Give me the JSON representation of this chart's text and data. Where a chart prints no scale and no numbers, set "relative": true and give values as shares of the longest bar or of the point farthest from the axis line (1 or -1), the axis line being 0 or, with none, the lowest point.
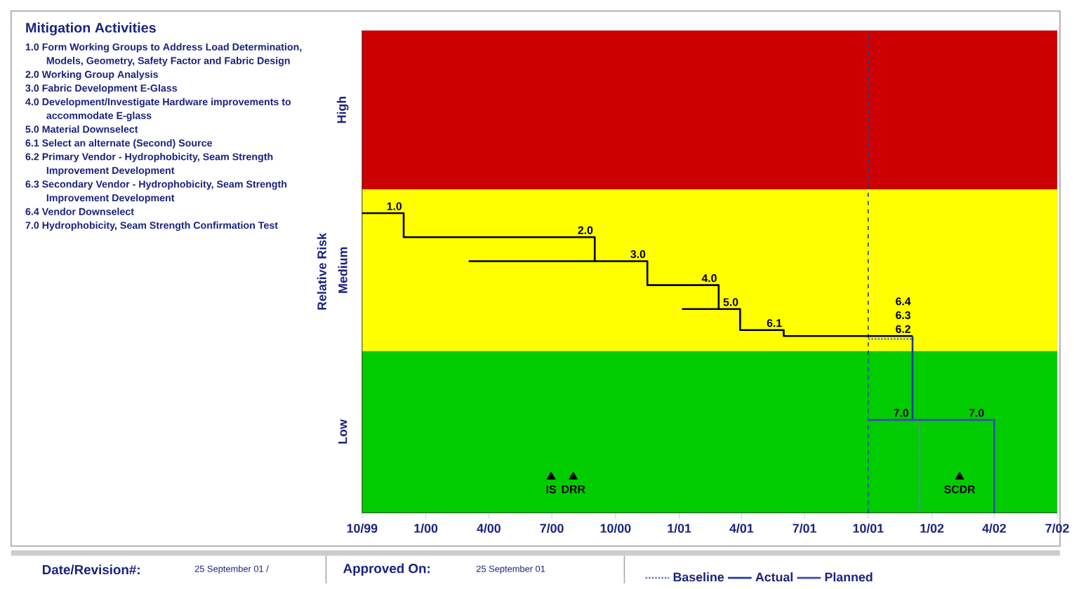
{
  "chart_data": {
    "type": "line",
    "ylabel": "Relative Risk",
    "relative": true,
    "xlim": [
      "1999-10-01",
      "2002-07-01"
    ],
    "xticks": [
      {
        "value": "1999-10-01",
        "label": "10/99"
      },
      {
        "value": "2000-01-01",
        "label": "1/00"
      },
      {
        "value": "2000-04-01",
        "label": "4/00"
      },
      {
        "value": "2000-07-01",
        "label": "7/00"
      },
      {
        "value": "2000-10-01",
        "label": "10/00"
      },
      {
        "value": "2001-01-01",
        "label": "1/01"
      },
      {
        "value": "2001-04-01",
        "label": "4/01"
      },
      {
        "value": "2001-07-01",
        "label": "7/01"
      },
      {
        "value": "2001-10-01",
        "label": "10/01"
      },
      {
        "value": "2002-01-01",
        "label": "1/02"
      },
      {
        "value": "2002-04-01",
        "label": "4/02"
      },
      {
        "value": "2002-07-01",
        "label": "7/02"
      }
    ],
    "bands": [
      {
        "axis": "y",
        "from": 0,
        "to": 0.54,
        "color": "#00cc00",
        "label": "Low"
      },
      {
        "axis": "y",
        "from": 0.54,
        "to": 1.08,
        "color": "#ffff00",
        "label": "Medium"
      },
      {
        "axis": "y",
        "from": 1.08,
        "to": 1.61,
        "color": "#cc0000",
        "label": "High"
      }
    ],
    "ref_lines": [
      {
        "axis": "x",
        "value": "2001-10-01",
        "color": "#2040a0",
        "line_style": "dashed"
      }
    ],
    "legend": "bottom",
    "series": [
      {
        "color": "#000000",
        "line_style": "solid",
        "x": [
          "1999-10-01",
          "1999-11-30",
          "1999-11-30",
          "2000-09-01",
          "2000-09-01",
          "2000-11-16",
          "2000-11-16",
          "2001-02-27",
          "2001-02-27",
          "2001-03-30",
          "2001-03-30",
          "2001-06-01",
          "2001-06-01",
          "2001-12-04",
          null,
          "2000-03-03",
          "2000-09-01",
          null,
          "2001-01-05",
          "2001-02-27"
        ],
        "values": [
          1,
          1,
          0.92,
          0.92,
          0.84,
          0.84,
          0.76,
          0.76,
          0.68,
          0.68,
          0.61,
          0.61,
          0.59,
          0.59,
          null,
          0.84,
          0.84,
          null,
          0.68,
          0.68
        ]
      },
      {
        "name": "Baseline",
        "color": "#7080c0",
        "line_style": "dotted",
        "x": [
          "2001-10-01",
          "2001-12-06",
          null,
          "2001-12-14",
          "2001-12-14"
        ],
        "values": [
          0.58,
          0.58,
          null,
          0.31,
          0
        ]
      },
      {
        "name": "Actual",
        "color": "#1f3c9c",
        "line_style": "solid",
        "x": [
          "2001-12-04",
          "2001-12-04"
        ],
        "values": [
          0.59,
          0.31
        ]
      },
      {
        "name": "Planned",
        "color": "#3a4ab0",
        "line_style": "solid",
        "x": [
          "2001-10-01",
          "2002-04-01",
          "2002-04-01"
        ],
        "values": [
          0.31,
          0.31,
          0
        ]
      },
      {
        "type": "scatter",
        "color": "#000000",
        "marker": "triangle",
        "x": [
          "2000-06-30",
          "2000-08-01",
          "2002-02-10"
        ],
        "values": [
          0.12,
          0.12,
          0.12
        ]
      }
    ],
    "annotations": [
      "Mitigation Activities",
      "1.0 Form Working Groups to Address Load Determination, Models, Geometry, Safety Factor and Fabric Design",
      "2.0 Working Group Analysis",
      "3.0 Fabric Development E-Glass",
      "4.0 Development/Investigate Hardware improvements to accommodate E-glass",
      "5.0 Material Downselect",
      "6.1 Select an alternate (Second) Source",
      "6.2 Primary Vendor - Hydrophobicity, Seam Strength Improvement Development",
      "6.3 Secondary Vendor - Hydrophobicity, Seam Strength Improvement Development",
      "6.4 Vendor Downselect",
      "7.0 Hydrophobicity, Seam Strength Confirmation Test",
      "Date/Revision#:",
      "25 September 01 /",
      "Approved On:",
      "25 September 01",
      {
        "text": "1.0",
        "x": "1999-11-30",
        "y": 1
      },
      {
        "text": "2.0",
        "x": "2000-09-01",
        "y": 0.92
      },
      {
        "text": "3.0",
        "x": "2000-11-16",
        "y": 0.84
      },
      {
        "text": "4.0",
        "x": "2001-02-27",
        "y": 0.76
      },
      {
        "text": "5.0",
        "x": "2001-03-30",
        "y": 0.68
      },
      {
        "text": "6.1",
        "x": "2001-06-01",
        "y": 0.61
      },
      {
        "text": "6.2",
        "x": "2001-12-04",
        "y": 0.59
      },
      {
        "text": "6.3",
        "x": "2001-12-04",
        "y": 0.59
      },
      {
        "text": "6.4",
        "x": "2001-12-04",
        "y": 0.59
      },
      {
        "text": "7.0",
        "x": "2001-12-01",
        "y": 0.31
      },
      {
        "text": "7.0",
        "x": "2002-03-20",
        "y": 0.31
      },
      {
        "text": "IS",
        "x": "2000-06-30",
        "y": 0.12
      },
      {
        "text": "DRR",
        "x": "2000-08-01",
        "y": 0.12
      },
      {
        "text": "SCDR",
        "x": "2002-02-10",
        "y": 0.12
      }
    ]
  }
}
